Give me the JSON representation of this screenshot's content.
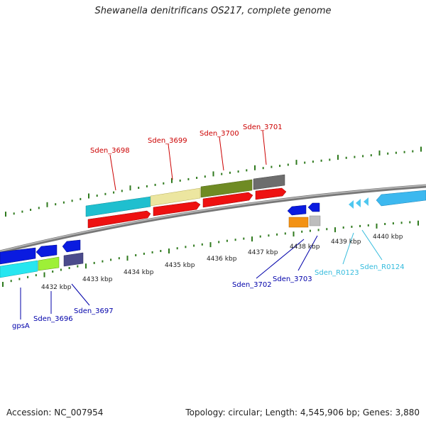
{
  "title": "Shewanella denitrificans OS217, complete genome",
  "footer": {
    "accession": "Accession: NC_007954",
    "summary": "Topology: circular; Length: 4,545,906 bp; Genes: 3,880"
  },
  "kbp_labels": [
    "4432 kbp",
    "4433 kbp",
    "4434 kbp",
    "4435 kbp",
    "4436 kbp",
    "4437 kbp",
    "4438 kbp",
    "4439 kbp",
    "4440 kbp"
  ],
  "upper_gene_labels": [
    "Sden_3698",
    "Sden_3699",
    "Sden_3700",
    "Sden_3701"
  ],
  "lower_gene_labels": [
    "gpsA",
    "Sden_3696",
    "Sden_3697",
    "Sden_3702",
    "Sden_3703"
  ],
  "rna_labels": [
    "Sden_R0123",
    "Sden_R0124"
  ],
  "colors": {
    "upper_label": "#cc0000",
    "lower_label": "#0000aa",
    "rna_label": "#33bbdd",
    "backbone": "#888888",
    "tick": "#2f7a1e"
  },
  "icons": [
    "backbone-arc",
    "tick-marks",
    "gene-arrows",
    "leader-lines"
  ]
}
